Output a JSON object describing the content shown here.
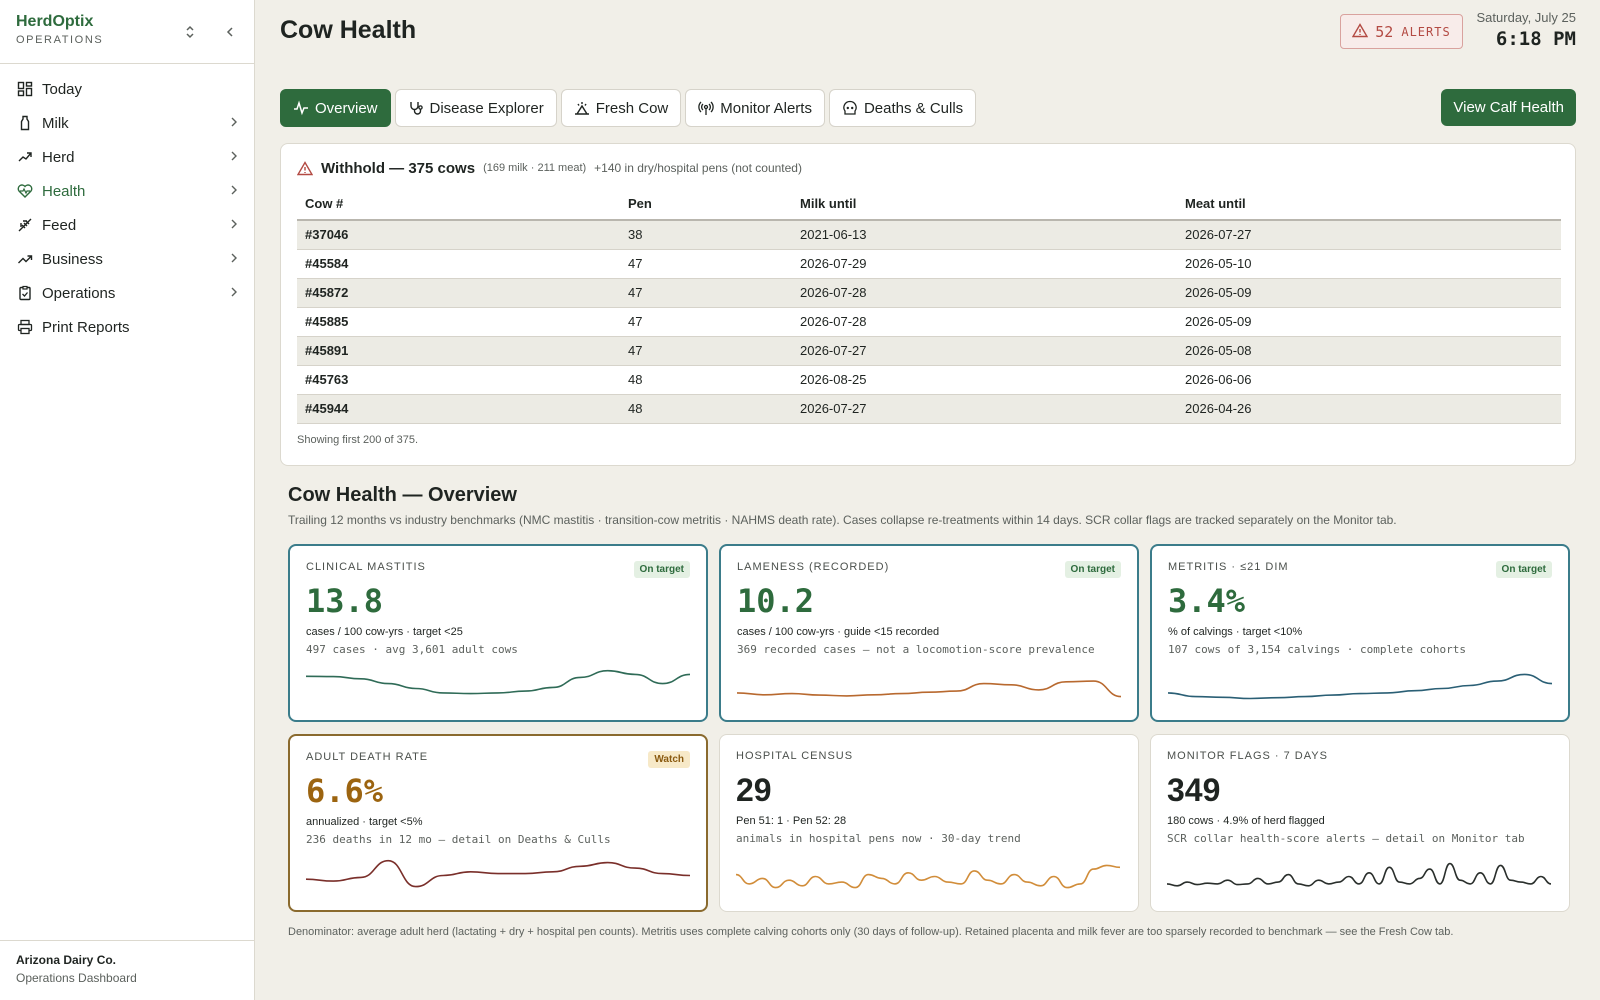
{
  "brand": {
    "name": "HerdOptix",
    "sub": "OPERATIONS"
  },
  "nav": [
    {
      "label": "Today",
      "icon": "dashboard-icon",
      "chevron": false
    },
    {
      "label": "Milk",
      "icon": "milk-bottle-icon",
      "chevron": true
    },
    {
      "label": "Herd",
      "icon": "herd-icon",
      "chevron": true
    },
    {
      "label": "Health",
      "icon": "heart-pulse-icon",
      "chevron": true,
      "active": true
    },
    {
      "label": "Feed",
      "icon": "wheat-icon",
      "chevron": true
    },
    {
      "label": "Business",
      "icon": "trend-up-icon",
      "chevron": true
    },
    {
      "label": "Operations",
      "icon": "clipboard-icon",
      "chevron": true
    },
    {
      "label": "Print Reports",
      "icon": "printer-icon",
      "chevron": false
    }
  ],
  "footer": {
    "org": "Arizona Dairy Co.",
    "sub": "Operations Dashboard"
  },
  "header": {
    "title": "Cow Health",
    "alerts_count": "52",
    "alerts_label": "ALERTS",
    "date": "Saturday, July 25",
    "time": "6:18 PM"
  },
  "tabs": [
    {
      "label": "Overview",
      "icon": "activity-icon",
      "active": true
    },
    {
      "label": "Disease Explorer",
      "icon": "stethoscope-icon"
    },
    {
      "label": "Fresh Cow",
      "icon": "calving-icon"
    },
    {
      "label": "Monitor Alerts",
      "icon": "broadcast-icon"
    },
    {
      "label": "Deaths & Culls",
      "icon": "skull-icon"
    }
  ],
  "calf_button": "View Calf Health",
  "withhold": {
    "title": "Withhold — 375 cows",
    "meta": "(169 milk · 211 meat)",
    "meta2": "+140 in dry/hospital pens (not counted)",
    "columns": [
      "Cow #",
      "Pen",
      "Milk until",
      "Meat until"
    ],
    "rows": [
      [
        "#37046",
        "38",
        "2021-06-13",
        "2026-07-27"
      ],
      [
        "#45584",
        "47",
        "2026-07-29",
        "2026-05-10"
      ],
      [
        "#45872",
        "47",
        "2026-07-28",
        "2026-05-09"
      ],
      [
        "#45885",
        "47",
        "2026-07-28",
        "2026-05-09"
      ],
      [
        "#45891",
        "47",
        "2026-07-27",
        "2026-05-08"
      ],
      [
        "#45763",
        "48",
        "2026-08-25",
        "2026-06-06"
      ],
      [
        "#45944",
        "48",
        "2026-07-27",
        "2026-04-26"
      ]
    ],
    "footer": "Showing first 200 of 375."
  },
  "overview": {
    "title": "Cow Health — Overview",
    "subtitle": "Trailing 12 months vs industry benchmarks (NMC mastitis · transition-cow metritis · NAHMS death rate). Cases collapse re-treatments within 14 days. SCR collar flags are tracked separately on the Monitor tab.",
    "cards": [
      {
        "label": "CLINICAL MASTITIS",
        "badge": "On target",
        "value": "13.8",
        "line1": "cases / 100 cow-yrs · target <25",
        "line2": "497 cases · avg 3,601 adult cows",
        "spark": [
          0.75,
          0.74,
          0.68,
          0.55,
          0.42,
          0.3,
          0.28,
          0.3,
          0.35,
          0.45,
          0.72,
          0.9,
          0.8,
          0.55,
          0.8
        ],
        "color": "#2f6b57"
      },
      {
        "label": "LAMENESS (RECORDED)",
        "badge": "On target",
        "value": "10.2",
        "line1": "cases / 100 cow-yrs · guide <15 recorded",
        "line2": "369 recorded cases — not a locomotion-score prevalence",
        "spark": [
          0.3,
          0.25,
          0.28,
          0.24,
          0.22,
          0.25,
          0.28,
          0.32,
          0.35,
          0.55,
          0.52,
          0.38,
          0.6,
          0.62,
          0.2
        ],
        "color": "#b8692f"
      },
      {
        "label": "METRITIS · ≤21 DIM",
        "badge": "On target",
        "value": "3.4%",
        "line1": "% of calvings · target <10%",
        "line2": "107 cows of 3,154 calvings · complete cohorts",
        "spark": [
          0.3,
          0.2,
          0.18,
          0.15,
          0.17,
          0.2,
          0.24,
          0.28,
          0.3,
          0.36,
          0.42,
          0.5,
          0.62,
          0.8,
          0.55
        ],
        "color": "#2a5f75"
      },
      {
        "label": "ADULT DEATH RATE",
        "badge": "Watch",
        "value": "6.6%",
        "line1": "annualized · target <5%",
        "line2": "236 deaths in 12 mo — detail on Deaths & Culls",
        "spark": [
          0.4,
          0.35,
          0.45,
          0.9,
          0.2,
          0.5,
          0.6,
          0.55,
          0.55,
          0.6,
          0.75,
          0.85,
          0.7,
          0.55,
          0.5
        ],
        "color": "#7a2f2a"
      },
      {
        "label": "HOSPITAL CENSUS",
        "value": "29",
        "line1": "Pen 51: 1 · Pen 52: 28",
        "line2": "animals in hospital pens now · 30-day trend",
        "spark": [
          0.55,
          0.3,
          0.45,
          0.2,
          0.4,
          0.25,
          0.5,
          0.3,
          0.35,
          0.2,
          0.55,
          0.45,
          0.3,
          0.6,
          0.4,
          0.5,
          0.35,
          0.3,
          0.65,
          0.4,
          0.3,
          0.55,
          0.35,
          0.25,
          0.5,
          0.2,
          0.3,
          0.7,
          0.8,
          0.75
        ],
        "color": "#d18d3a"
      },
      {
        "label": "MONITOR FLAGS · 7 DAYS",
        "value": "349",
        "line1": "180 cows · 4.9% of herd flagged",
        "line2": "SCR collar health-score alerts — detail on Monitor tab",
        "spark": [
          0.3,
          0.25,
          0.35,
          0.28,
          0.32,
          0.3,
          0.4,
          0.28,
          0.3,
          0.45,
          0.3,
          0.35,
          0.55,
          0.3,
          0.25,
          0.4,
          0.3,
          0.35,
          0.5,
          0.3,
          0.6,
          0.3,
          0.75,
          0.35,
          0.3,
          0.45,
          0.7,
          0.3,
          0.85,
          0.4,
          0.3,
          0.6,
          0.3,
          0.8,
          0.4,
          0.35,
          0.3,
          0.5,
          0.3
        ],
        "color": "#2a2f2c"
      }
    ],
    "footnote": "Denominator: average adult herd (lactating + dry + hospital pen counts). Metritis uses complete calving cohorts only (30 days of follow-up). Retained placenta and milk fever are too sparsely recorded to benchmark — see the Fresh Cow tab."
  }
}
